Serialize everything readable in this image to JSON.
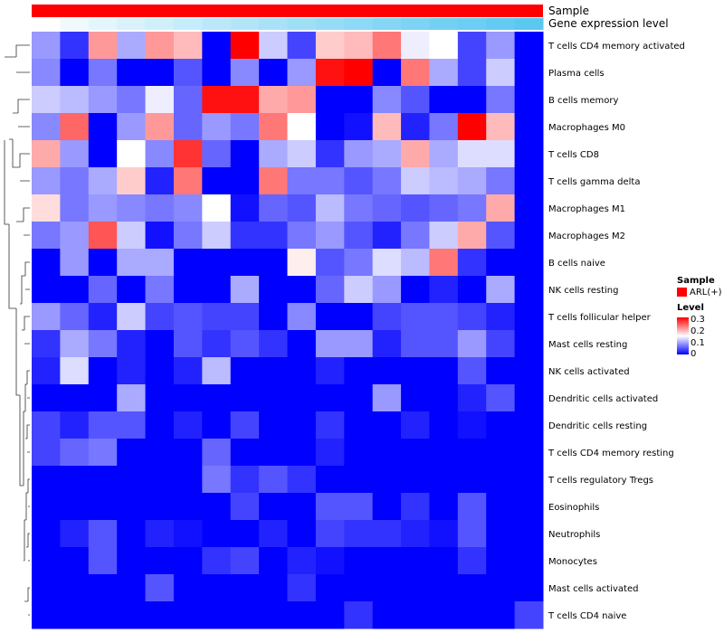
{
  "chart_data": {
    "type": "heatmap",
    "title": "",
    "value_label": "Level",
    "color_scale": {
      "min": 0,
      "mid": 0.15,
      "max": 0.3,
      "low": "#0000FF",
      "mid_color": "#FFFFFF",
      "high": "#FF0000"
    },
    "column_annotations": [
      {
        "label": "Sample",
        "legend_title": "Sample",
        "categories": [
          "ARL(+)"
        ],
        "colors": [
          "#FF0000"
        ]
      },
      {
        "label": "Gene expression level",
        "type": "continuous",
        "gradient": [
          "#FFFFFF",
          "#5BC8F0"
        ]
      }
    ],
    "legend": {
      "title": "Level",
      "ticks": [
        "0.3",
        "0.2",
        "0.1",
        "0"
      ]
    },
    "rows": [
      "T cells CD4 memory activated",
      "Plasma cells",
      "B cells memory",
      "Macrophages M0",
      "T cells CD8",
      "T cells gamma delta",
      "Macrophages M1",
      "Macrophages M2",
      "B cells naive",
      "NK cells resting",
      "T cells follicular helper",
      "Mast cells resting",
      "NK cells activated",
      "Dendritic cells activated",
      "Dendritic cells resting",
      "T cells CD4 memory resting",
      "T cells regulatory  Tregs",
      "Eosinophils",
      "Neutrophils",
      "Monocytes",
      "Mast cells activated",
      "T cells CD4 naive"
    ],
    "n_columns": 18,
    "values": [
      [
        0.09,
        0.03,
        0.21,
        0.1,
        0.21,
        0.19,
        0.0,
        0.3,
        0.12,
        0.04,
        0.18,
        0.19,
        0.23,
        0.14,
        0.15,
        0.04,
        0.09,
        0.0
      ],
      [
        0.08,
        0.0,
        0.07,
        0.0,
        0.0,
        0.05,
        0.0,
        0.08,
        0.0,
        0.09,
        0.29,
        0.3,
        0.0,
        0.23,
        0.1,
        0.04,
        0.12,
        0.0
      ],
      [
        0.12,
        0.11,
        0.09,
        0.07,
        0.14,
        0.06,
        0.29,
        0.29,
        0.2,
        0.21,
        0.0,
        0.0,
        0.08,
        0.05,
        0.0,
        0.0,
        0.07,
        0.0
      ],
      [
        0.08,
        0.24,
        0.0,
        0.09,
        0.21,
        0.06,
        0.09,
        0.07,
        0.23,
        0.15,
        0.0,
        0.01,
        0.19,
        0.02,
        0.07,
        0.3,
        0.19,
        0.0
      ],
      [
        0.2,
        0.09,
        0.0,
        0.15,
        0.08,
        0.27,
        0.06,
        0.0,
        0.1,
        0.12,
        0.03,
        0.09,
        0.1,
        0.2,
        0.1,
        0.13,
        0.13,
        0.0
      ],
      [
        0.09,
        0.07,
        0.1,
        0.18,
        0.02,
        0.23,
        0.0,
        0.0,
        0.23,
        0.07,
        0.07,
        0.05,
        0.07,
        0.12,
        0.11,
        0.1,
        0.07,
        0.0
      ],
      [
        0.17,
        0.07,
        0.09,
        0.08,
        0.07,
        0.08,
        0.15,
        0.01,
        0.06,
        0.05,
        0.11,
        0.07,
        0.06,
        0.05,
        0.06,
        0.07,
        0.2,
        0.0
      ],
      [
        0.07,
        0.09,
        0.25,
        0.12,
        0.01,
        0.07,
        0.12,
        0.03,
        0.03,
        0.07,
        0.09,
        0.05,
        0.02,
        0.07,
        0.12,
        0.2,
        0.05,
        0.0
      ],
      [
        0.0,
        0.09,
        0.0,
        0.1,
        0.1,
        0.0,
        0.0,
        0.0,
        0.0,
        0.16,
        0.05,
        0.07,
        0.13,
        0.11,
        0.23,
        0.03,
        0.0,
        0.0
      ],
      [
        0.0,
        0.0,
        0.06,
        0.0,
        0.07,
        0.0,
        0.0,
        0.1,
        0.0,
        0.0,
        0.06,
        0.12,
        0.09,
        0.0,
        0.02,
        0.0,
        0.1,
        0.0
      ],
      [
        0.09,
        0.06,
        0.02,
        0.12,
        0.04,
        0.05,
        0.04,
        0.04,
        0.0,
        0.08,
        0.0,
        0.0,
        0.04,
        0.05,
        0.05,
        0.04,
        0.02,
        0.0
      ],
      [
        0.03,
        0.1,
        0.07,
        0.02,
        0.0,
        0.05,
        0.03,
        0.05,
        0.03,
        0.0,
        0.09,
        0.09,
        0.02,
        0.05,
        0.05,
        0.09,
        0.04,
        0.0
      ],
      [
        0.02,
        0.13,
        0.0,
        0.02,
        0.0,
        0.02,
        0.11,
        0.0,
        0.0,
        0.0,
        0.02,
        0.0,
        0.0,
        0.0,
        0.0,
        0.05,
        0.0,
        0.0
      ],
      [
        0.0,
        0.0,
        0.0,
        0.1,
        0.0,
        0.0,
        0.0,
        0.0,
        0.0,
        0.0,
        0.0,
        0.0,
        0.09,
        0.0,
        0.0,
        0.02,
        0.05,
        0.0
      ],
      [
        0.04,
        0.02,
        0.05,
        0.05,
        0.0,
        0.02,
        0.0,
        0.04,
        0.0,
        0.0,
        0.03,
        0.0,
        0.0,
        0.02,
        0.0,
        0.01,
        0.0,
        0.0
      ],
      [
        0.04,
        0.06,
        0.07,
        0.0,
        0.0,
        0.0,
        0.06,
        0.0,
        0.0,
        0.0,
        0.02,
        0.0,
        0.0,
        0.0,
        0.0,
        0.0,
        0.0,
        0.0
      ],
      [
        0.0,
        0.0,
        0.0,
        0.0,
        0.0,
        0.0,
        0.07,
        0.03,
        0.05,
        0.03,
        0.0,
        0.0,
        0.0,
        0.0,
        0.0,
        0.0,
        0.0,
        0.0
      ],
      [
        0.0,
        0.0,
        0.0,
        0.0,
        0.0,
        0.0,
        0.0,
        0.04,
        0.0,
        0.0,
        0.05,
        0.05,
        0.0,
        0.03,
        0.0,
        0.05,
        0.0,
        0.0
      ],
      [
        0.0,
        0.02,
        0.05,
        0.0,
        0.02,
        0.01,
        0.0,
        0.0,
        0.02,
        0.0,
        0.04,
        0.03,
        0.03,
        0.02,
        0.01,
        0.05,
        0.0,
        0.0
      ],
      [
        0.0,
        0.0,
        0.05,
        0.0,
        0.0,
        0.0,
        0.03,
        0.04,
        0.0,
        0.02,
        0.01,
        0.0,
        0.0,
        0.0,
        0.0,
        0.03,
        0.0,
        0.0
      ],
      [
        0.0,
        0.0,
        0.0,
        0.0,
        0.05,
        0.0,
        0.0,
        0.0,
        0.0,
        0.03,
        0.0,
        0.0,
        0.0,
        0.0,
        0.0,
        0.0,
        0.0,
        0.0
      ],
      [
        0.0,
        0.0,
        0.0,
        0.0,
        0.0,
        0.0,
        0.0,
        0.0,
        0.0,
        0.0,
        0.0,
        0.03,
        0.0,
        0.0,
        0.0,
        0.0,
        0.0,
        0.04
      ]
    ]
  }
}
